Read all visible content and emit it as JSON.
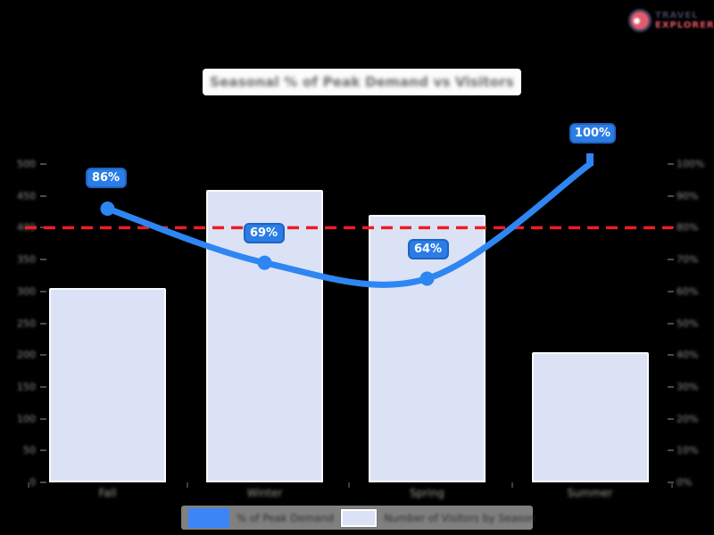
{
  "background": "#000000",
  "brand": {
    "line1": "TRAVEL",
    "line2": "EXPLORER",
    "navy": "#3e3e5b",
    "red": "#e05266"
  },
  "chart_data": {
    "type": "combo-bar-line",
    "title": "Seasonal % of Peak Demand vs Visitors",
    "categories": [
      "Fall",
      "Winter",
      "Spring",
      "Summer"
    ],
    "series": [
      {
        "name": "% of Peak Demand",
        "type": "line",
        "axis": "right",
        "color": "#2e86f2",
        "values": [
          86,
          69,
          64,
          100
        ],
        "point_labels": [
          "86%",
          "69%",
          "64%",
          "100%"
        ]
      },
      {
        "name": "Number of Visitors by Season",
        "type": "bar",
        "axis": "left",
        "color": "#dce2f6",
        "values": [
          305,
          460,
          420,
          205
        ]
      }
    ],
    "left_axis": {
      "min": 0,
      "max": 500,
      "step": 50,
      "tick_labels": [
        "500",
        "450",
        "400",
        "350",
        "300",
        "250",
        "200",
        "150",
        "100",
        "50",
        "0"
      ]
    },
    "right_axis": {
      "min": 0,
      "max": 100,
      "step": 10,
      "tick_labels": [
        "100%",
        "90%",
        "80%",
        "70%",
        "60%",
        "50%",
        "40%",
        "30%",
        "20%",
        "10%",
        "0%"
      ]
    },
    "reference_line": {
      "value": 80,
      "axis": "right",
      "color": "#ed1c24",
      "style": "dashed"
    },
    "legend": [
      {
        "label": "% of Peak Demand",
        "swatch_color": "#3b86f7"
      },
      {
        "label": "Number of Visitors by Season",
        "swatch_color": "#dce2f6"
      }
    ]
  }
}
